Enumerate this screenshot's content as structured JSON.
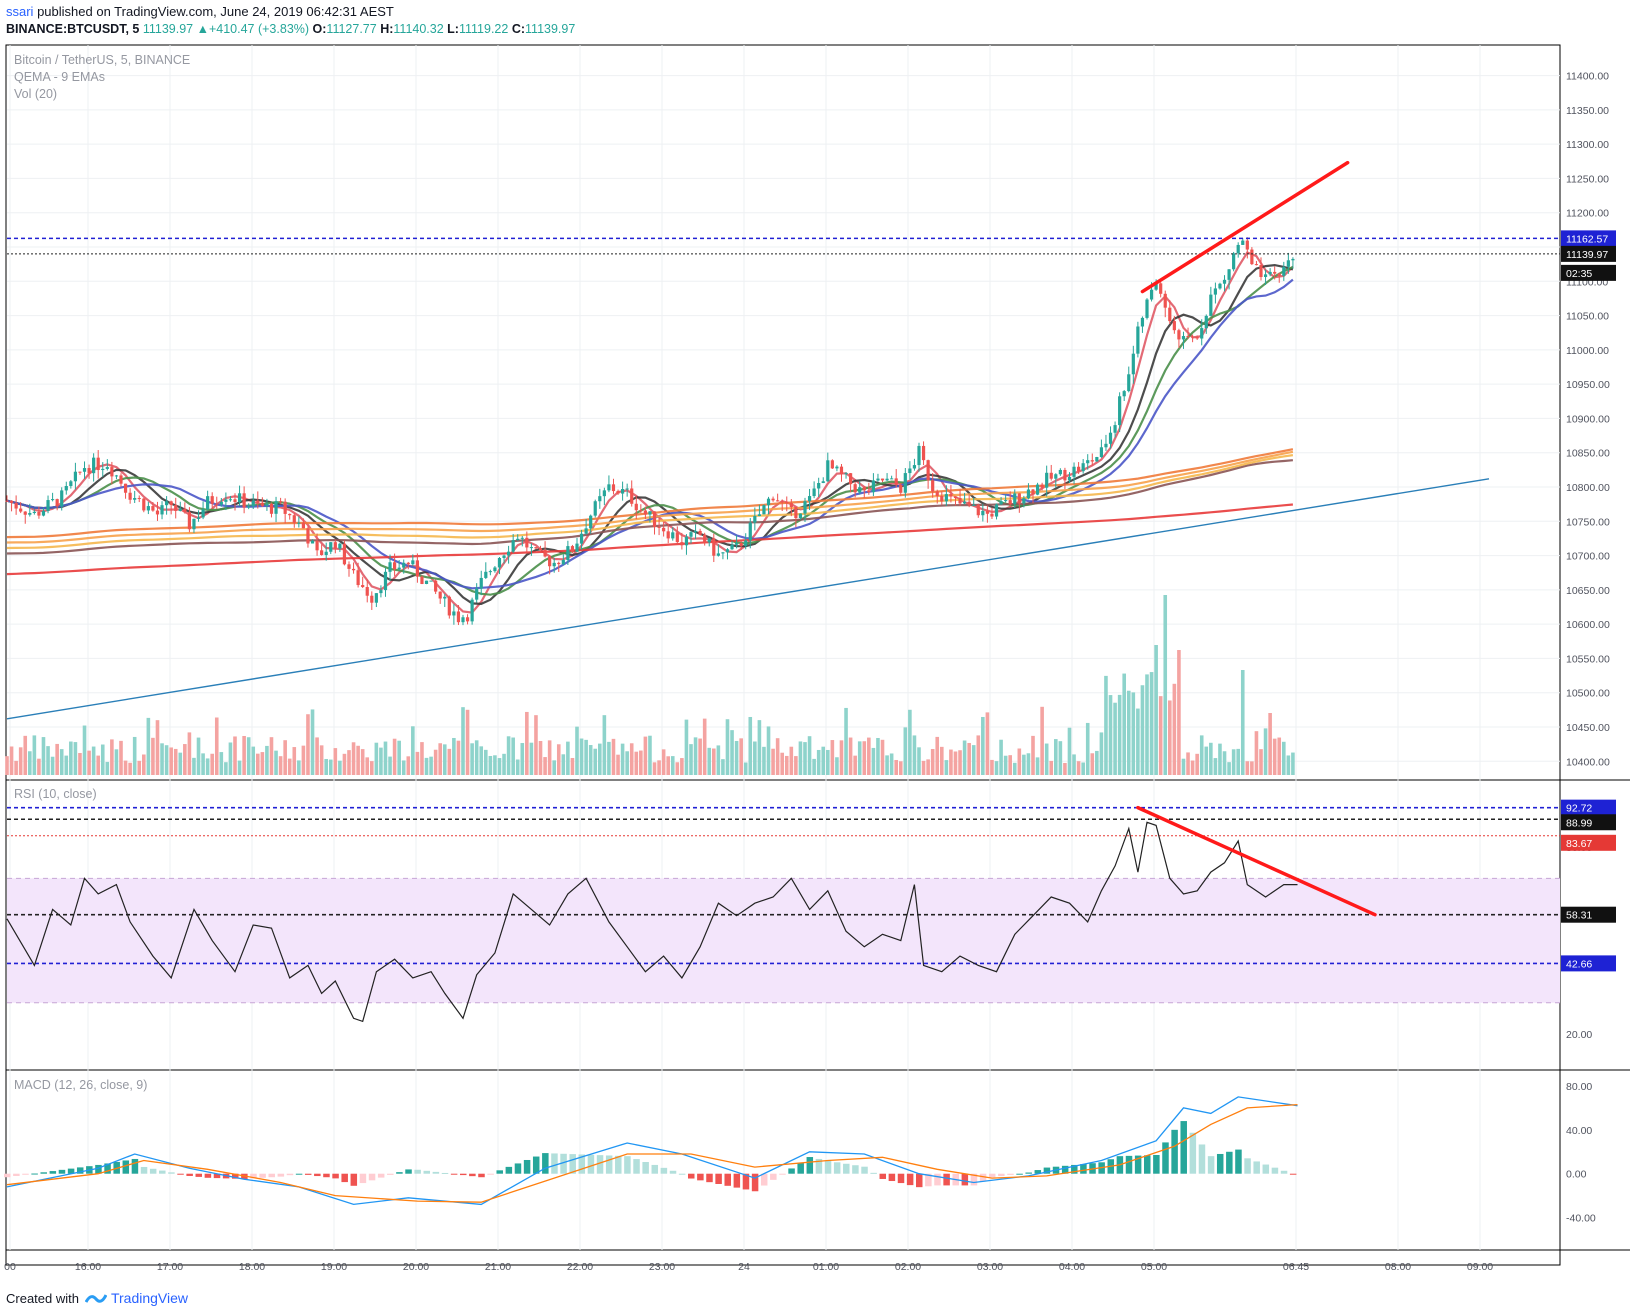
{
  "header": {
    "user": "ssari",
    "published_text": "published on TradingView.com, June 24, 2019 06:42:31 AEST",
    "symbol_line": "BINANCE:BTCUSDT, 5",
    "last": "11139.97",
    "change": "+410.47 (+3.83%)",
    "open_label": "O:",
    "open": "11127.77",
    "high_label": "H:",
    "high": "11140.32",
    "low_label": "L:",
    "low": "11119.22",
    "close_label": "C:",
    "close": "11139.97"
  },
  "legend": {
    "pair": "Bitcoin / TetherUS, 5, BINANCE",
    "qema": "QEMA - 9 EMAs",
    "vol": "Vol (20)",
    "rsi": "RSI (10, close)",
    "macd": "MACD (12, 26, close, 9)"
  },
  "footer": {
    "created": "Created with",
    "brand": "TradingView"
  },
  "colors": {
    "up": "#26a69a",
    "down": "#ef5350",
    "annotation": "#ff1a1a",
    "trendline": "#2a7fb8",
    "dotted_blue": "#2121d4",
    "rsi_band": "#f3e5fb"
  },
  "chart_data": [
    {
      "type": "candlestick",
      "title": "Bitcoin / TetherUS, 5, BINANCE",
      "ylim": [
        10380,
        11430
      ],
      "yticks": [
        "11400.00",
        "11350.00",
        "11300.00",
        "11250.00",
        "11200.00",
        "11150.00",
        "11100.00",
        "11050.00",
        "11000.00",
        "10950.00",
        "10900.00",
        "10850.00",
        "10800.00",
        "10750.00",
        "10700.00",
        "10650.00",
        "10600.00",
        "10550.00",
        "10500.00",
        "10450.00",
        "10400.00"
      ],
      "price_tags": {
        "level": "11162.57",
        "last": "11139.97",
        "countdown": "02:35"
      },
      "close_path": [
        [
          0,
          10780
        ],
        [
          6,
          10760
        ],
        [
          12,
          10785
        ],
        [
          17,
          10830
        ],
        [
          22,
          10835
        ],
        [
          27,
          10790
        ],
        [
          33,
          10760
        ],
        [
          36,
          10775
        ],
        [
          40,
          10745
        ],
        [
          44,
          10778
        ],
        [
          48,
          10790
        ],
        [
          53,
          10775
        ],
        [
          57,
          10770
        ],
        [
          60,
          10770
        ],
        [
          65,
          10740
        ],
        [
          68,
          10700
        ],
        [
          72,
          10720
        ],
        [
          76,
          10670
        ],
        [
          80,
          10640
        ],
        [
          84,
          10680
        ],
        [
          88,
          10690
        ],
        [
          92,
          10660
        ],
        [
          96,
          10630
        ],
        [
          99,
          10610
        ],
        [
          101,
          10615
        ],
        [
          104,
          10660
        ],
        [
          108,
          10700
        ],
        [
          112,
          10730
        ],
        [
          116,
          10700
        ],
        [
          120,
          10690
        ],
        [
          124,
          10710
        ],
        [
          128,
          10760
        ],
        [
          132,
          10800
        ],
        [
          136,
          10790
        ],
        [
          140,
          10760
        ],
        [
          144,
          10740
        ],
        [
          148,
          10720
        ],
        [
          152,
          10730
        ],
        [
          156,
          10700
        ],
        [
          160,
          10710
        ],
        [
          164,
          10750
        ],
        [
          168,
          10790
        ],
        [
          172,
          10760
        ],
        [
          176,
          10780
        ],
        [
          180,
          10830
        ],
        [
          184,
          10810
        ],
        [
          188,
          10790
        ],
        [
          192,
          10810
        ],
        [
          196,
          10800
        ],
        [
          200,
          10850
        ],
        [
          203,
          10800
        ],
        [
          207,
          10780
        ],
        [
          211,
          10770
        ],
        [
          215,
          10760
        ],
        [
          219,
          10775
        ],
        [
          223,
          10790
        ],
        [
          228,
          10810
        ],
        [
          232,
          10820
        ],
        [
          236,
          10830
        ],
        [
          240,
          10850
        ],
        [
          243,
          10900
        ],
        [
          246,
          10970
        ],
        [
          249,
          11050
        ],
        [
          252,
          11100
        ],
        [
          255,
          11040
        ],
        [
          258,
          11010
        ],
        [
          261,
          11020
        ],
        [
          264,
          11080
        ],
        [
          267,
          11100
        ],
        [
          269,
          11140
        ],
        [
          271,
          11160
        ],
        [
          273,
          11120
        ],
        [
          276,
          11100
        ],
        [
          279,
          11110
        ],
        [
          282,
          11140
        ]
      ],
      "candle_count": 282,
      "trendline": [
        [
          0,
          10462
        ],
        [
          325,
          10812
        ]
      ],
      "resistance_line": [
        [
          249,
          11085
        ],
        [
          294,
          11273
        ]
      ],
      "ema_last_values": [
        11100,
        11050,
        10950,
        10870,
        10835,
        10810,
        10790,
        10768,
        10712
      ],
      "ema_colors": [
        "#e05a66",
        "#3a3a3a",
        "#4a8f4a",
        "#4a56c8",
        "#8a5454",
        "#f5b74d",
        "#f7a14a",
        "#f07a3a",
        "#e83a3a"
      ]
    },
    {
      "type": "bar",
      "title": "Vol (20)",
      "series": [
        {
          "name": "Vol (20)"
        }
      ],
      "spike_at": [
        [
          252,
          "up",
          130
        ],
        [
          254,
          "up",
          180
        ],
        [
          257,
          "down",
          125
        ],
        [
          271,
          "up",
          105
        ],
        [
          277,
          "down",
          62
        ]
      ]
    },
    {
      "type": "line",
      "title": "RSI (10, close)",
      "ylim": [
        10,
        100
      ],
      "yticks": [
        "80.00",
        "20.00"
      ],
      "levels": {
        "band_top": 70,
        "band_bottom": 30,
        "l1": "92.72",
        "l2": "88.99",
        "l3": "83.67",
        "l4": "58.31",
        "l5": "42.66"
      },
      "series_path": [
        [
          0,
          57
        ],
        [
          6,
          42
        ],
        [
          10,
          60
        ],
        [
          14,
          55
        ],
        [
          17,
          70
        ],
        [
          20,
          65
        ],
        [
          24,
          68
        ],
        [
          27,
          56
        ],
        [
          32,
          45
        ],
        [
          36,
          38
        ],
        [
          41,
          60
        ],
        [
          45,
          50
        ],
        [
          50,
          40
        ],
        [
          54,
          55
        ],
        [
          58,
          54
        ],
        [
          62,
          38
        ],
        [
          66,
          42
        ],
        [
          69,
          33
        ],
        [
          72,
          37
        ],
        [
          76,
          25
        ],
        [
          78,
          24
        ],
        [
          81,
          40
        ],
        [
          85,
          44
        ],
        [
          89,
          38
        ],
        [
          93,
          40
        ],
        [
          96,
          33
        ],
        [
          100,
          25
        ],
        [
          103,
          39
        ],
        [
          107,
          46
        ],
        [
          111,
          65
        ],
        [
          115,
          60
        ],
        [
          119,
          55
        ],
        [
          123,
          65
        ],
        [
          127,
          70
        ],
        [
          132,
          56
        ],
        [
          136,
          48
        ],
        [
          140,
          40
        ],
        [
          144,
          45
        ],
        [
          148,
          38
        ],
        [
          152,
          48
        ],
        [
          156,
          62
        ],
        [
          160,
          58
        ],
        [
          164,
          62
        ],
        [
          168,
          64
        ],
        [
          172,
          70
        ],
        [
          176,
          60
        ],
        [
          180,
          66
        ],
        [
          184,
          53
        ],
        [
          188,
          48
        ],
        [
          192,
          52
        ],
        [
          196,
          50
        ],
        [
          199,
          68
        ],
        [
          201,
          42
        ],
        [
          205,
          40
        ],
        [
          209,
          45
        ],
        [
          213,
          42
        ],
        [
          217,
          40
        ],
        [
          221,
          52
        ],
        [
          225,
          58
        ],
        [
          229,
          64
        ],
        [
          233,
          62
        ],
        [
          237,
          56
        ],
        [
          240,
          66
        ],
        [
          243,
          74
        ],
        [
          246,
          86
        ],
        [
          248,
          72
        ],
        [
          250,
          88
        ],
        [
          252,
          87
        ],
        [
          255,
          70
        ],
        [
          258,
          65
        ],
        [
          261,
          66
        ],
        [
          264,
          72
        ],
        [
          267,
          75
        ],
        [
          270,
          82
        ],
        [
          272,
          68
        ],
        [
          276,
          64
        ],
        [
          280,
          68
        ],
        [
          283,
          68
        ]
      ],
      "divergence_line": [
        [
          248,
          92.72
        ],
        [
          300,
          58.31
        ]
      ]
    },
    {
      "type": "line",
      "title": "MACD (12, 26, close, 9)",
      "ylim": [
        -65,
        90
      ],
      "yticks": [
        "80.00",
        "40.00",
        "0.00",
        "-40.00"
      ],
      "series": [
        {
          "name": "MACD",
          "points": [
            [
              0,
              -12
            ],
            [
              20,
              5
            ],
            [
              28,
              18
            ],
            [
              40,
              5
            ],
            [
              52,
              -5
            ],
            [
              64,
              -12
            ],
            [
              76,
              -28
            ],
            [
              88,
              -22
            ],
            [
              104,
              -28
            ],
            [
              118,
              5
            ],
            [
              136,
              28
            ],
            [
              148,
              18
            ],
            [
              164,
              -4
            ],
            [
              176,
              20
            ],
            [
              188,
              18
            ],
            [
              200,
              0
            ],
            [
              212,
              -8
            ],
            [
              224,
              -2
            ],
            [
              240,
              12
            ],
            [
              252,
              30
            ],
            [
              258,
              60
            ],
            [
              264,
              55
            ],
            [
              270,
              70
            ],
            [
              283,
              62
            ]
          ]
        },
        {
          "name": "Signal",
          "points": [
            [
              0,
              -10
            ],
            [
              20,
              0
            ],
            [
              30,
              12
            ],
            [
              44,
              4
            ],
            [
              60,
              -8
            ],
            [
              72,
              -20
            ],
            [
              90,
              -25
            ],
            [
              104,
              -26
            ],
            [
              120,
              -4
            ],
            [
              136,
              18
            ],
            [
              150,
              18
            ],
            [
              164,
              6
            ],
            [
              180,
              12
            ],
            [
              192,
              15
            ],
            [
              204,
              4
            ],
            [
              216,
              -4
            ],
            [
              228,
              -2
            ],
            [
              244,
              8
            ],
            [
              256,
              25
            ],
            [
              264,
              45
            ],
            [
              272,
              60
            ],
            [
              283,
              63
            ]
          ]
        }
      ],
      "xticks": [
        "00",
        "16:00",
        "17:00",
        "18:00",
        "19:00",
        "20:00",
        "21:00",
        "22:00",
        "23:00",
        "24",
        "01:00",
        "02:00",
        "03:00",
        "04:00",
        "05:00",
        "06:45",
        "08:00",
        "09:00"
      ]
    }
  ]
}
